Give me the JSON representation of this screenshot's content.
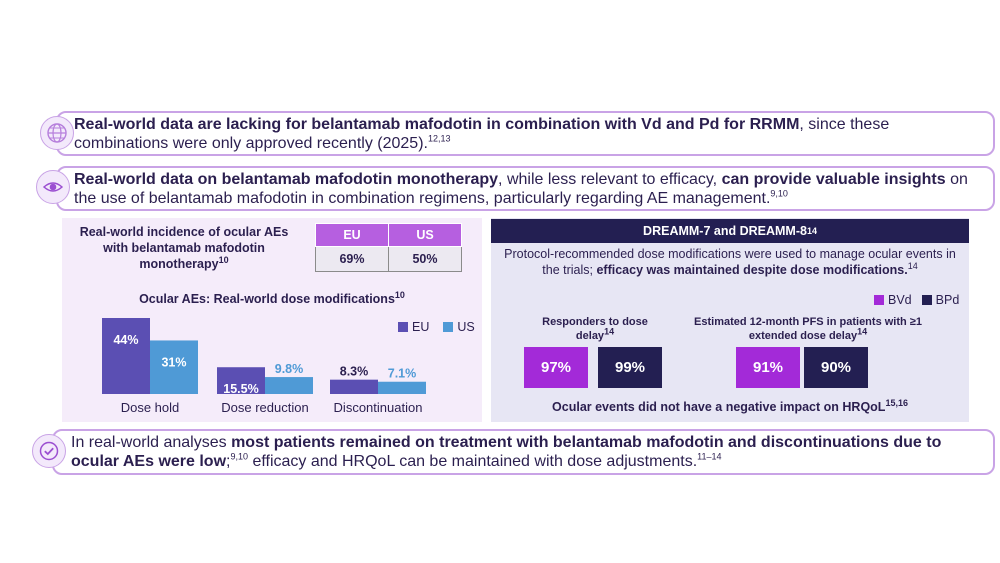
{
  "banners": {
    "b1": {
      "bold": "Real-world data are lacking for belantamab mafodotin in combination with Vd and Pd for RRMM",
      "rest": ", since these combinations were only approved recently (2025).",
      "ref": "12,13"
    },
    "b2": {
      "bold1": "Real-world data on belantamab mafodotin monotherapy",
      "mid": ", while less relevant to efficacy, ",
      "bold2": "can provide valuable insights",
      "rest": " on the use of belantamab mafodotin in combination regimens, particularly regarding AE management.",
      "ref": "9,10"
    },
    "b3": {
      "lead": "In real-world analyses ",
      "bold": "most patients remained on treatment with belantamab mafodotin and discontinuations due to ocular AEs were low",
      "semi": ";",
      "ref1": "9,10",
      "rest": " efficacy and HRQoL can be maintained with dose adjustments.",
      "ref2": "11–14"
    }
  },
  "icons": {
    "b1": "globe-icon",
    "b2": "eye-icon",
    "b3": "check-badge-icon"
  },
  "incidence": {
    "title": "Real-world incidence of ocular AEs with belantamab mafodotin monotherapy",
    "ref": "10",
    "headers": [
      "EU",
      "US"
    ],
    "values": [
      "69%",
      "50%"
    ]
  },
  "chart_data": {
    "type": "bar",
    "title": "Ocular AEs: Real-world dose modifications",
    "title_ref": "10",
    "categories": [
      "Dose hold",
      "Dose reduction",
      "Discontinuation"
    ],
    "series": [
      {
        "name": "EU",
        "values": [
          44,
          15.5,
          8.3
        ],
        "labels": [
          "44%",
          "15.5%",
          "8.3%"
        ],
        "color": "#5b4fb3"
      },
      {
        "name": "US",
        "values": [
          31,
          9.8,
          7.1
        ],
        "labels": [
          "31%",
          "9.8%",
          "7.1%"
        ],
        "color": "#4f9ad6"
      }
    ],
    "ylim": [
      0,
      44
    ],
    "legend_position": "top-right",
    "grid": false
  },
  "dreamm": {
    "header": "DREAMM-7 and DREAMM-8",
    "header_ref": "14",
    "desc_plain": "Protocol-recommended dose modifications were used to manage ocular events in the trials; ",
    "desc_bold": "efficacy was maintained despite dose modifications.",
    "desc_ref": "14",
    "legend": [
      "BVd",
      "BPd"
    ],
    "colors": {
      "BVd": "#a32ad8",
      "BPd": "#231f52"
    },
    "responders": {
      "title": "Responders to dose delay",
      "ref": "14",
      "values": [
        "97%",
        "99%"
      ]
    },
    "pfs": {
      "title": "Estimated 12-month PFS in patients with ≥1 extended dose delay",
      "ref": "14",
      "values": [
        "91%",
        "90%"
      ]
    },
    "footer": "Ocular events did not have a negative impact on HRQoL",
    "footer_ref": "15,16"
  }
}
